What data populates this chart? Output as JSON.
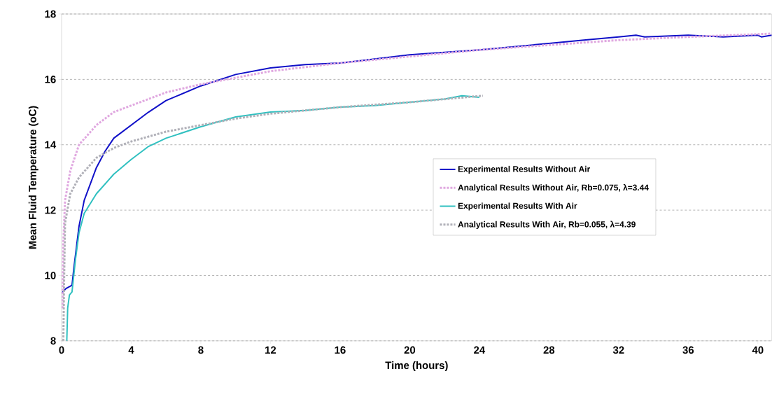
{
  "chart_data": {
    "type": "line",
    "xlabel": "Time (hours)",
    "ylabel": "Mean Fluid Temperature (oC)",
    "xlim": [
      0,
      40.8
    ],
    "ylim": [
      8,
      18
    ],
    "xticks": [
      0,
      4,
      8,
      12,
      16,
      20,
      24,
      28,
      32,
      36,
      40
    ],
    "yticks": [
      8,
      10,
      12,
      14,
      16,
      18
    ],
    "grid": "y",
    "legend": "center",
    "series": [
      {
        "name": "Experimental Results Without Air",
        "color": "#1010c8",
        "line_style": "solid",
        "x": [
          0,
          0.25,
          0.6,
          0.7,
          1,
          1.3,
          2,
          2.5,
          3,
          4,
          5,
          6,
          8,
          10,
          12,
          14,
          16,
          20,
          24,
          28,
          30,
          32,
          33,
          33.5,
          36,
          38,
          40,
          40.2,
          40.8
        ],
        "values": [
          9.45,
          9.6,
          9.7,
          10.2,
          11.5,
          12.3,
          13.3,
          13.8,
          14.2,
          14.6,
          15,
          15.35,
          15.8,
          16.15,
          16.35,
          16.45,
          16.5,
          16.75,
          16.9,
          17.1,
          17.2,
          17.3,
          17.35,
          17.3,
          17.35,
          17.3,
          17.35,
          17.3,
          17.35
        ]
      },
      {
        "name": "Analytical Results Without Air, Rb=0.075, λ=3.44",
        "color": "#e0a8e0",
        "line_style": "dotted",
        "x": [
          0.05,
          0.1,
          0.2,
          0.5,
          1,
          2,
          3,
          4,
          6,
          8,
          10,
          12,
          16,
          20,
          24,
          28,
          32,
          36,
          40.8
        ],
        "values": [
          9,
          11,
          12.3,
          13.2,
          14,
          14.6,
          15,
          15.2,
          15.6,
          15.85,
          16.05,
          16.25,
          16.5,
          16.7,
          16.9,
          17.05,
          17.2,
          17.3,
          17.4
        ]
      },
      {
        "name": "Experimental Results With Air",
        "color": "#30c0c0",
        "line_style": "solid",
        "x": [
          0.3,
          0.35,
          0.45,
          0.6,
          0.8,
          1,
          1.3,
          2,
          3,
          4,
          5,
          6,
          8,
          10,
          12,
          14,
          16,
          18,
          20,
          22,
          23,
          24
        ],
        "values": [
          8,
          9,
          9.4,
          9.5,
          10.5,
          11.3,
          11.9,
          12.5,
          13.1,
          13.55,
          13.95,
          14.2,
          14.55,
          14.85,
          15,
          15.05,
          15.15,
          15.2,
          15.3,
          15.4,
          15.5,
          15.45
        ]
      },
      {
        "name": "Analytical Results With Air, Rb=0.055, λ=4.39",
        "color": "#b0b0b8",
        "line_style": "dotted",
        "x": [
          0.1,
          0.15,
          0.2,
          0.5,
          1,
          2,
          3,
          4,
          6,
          8,
          10,
          12,
          16,
          20,
          24.2
        ],
        "values": [
          8,
          10,
          11.6,
          12.5,
          13,
          13.6,
          13.9,
          14.1,
          14.4,
          14.6,
          14.8,
          14.95,
          15.15,
          15.3,
          15.5
        ]
      }
    ]
  }
}
